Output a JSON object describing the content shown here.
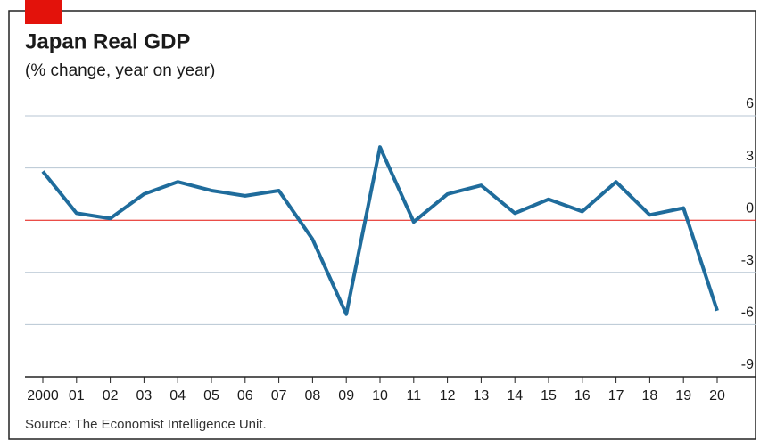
{
  "chart_data": {
    "type": "line",
    "title": "Japan Real GDP",
    "subtitle": "(% change, year on year)",
    "source": "Source: The Economist Intelligence Unit.",
    "categories": [
      "2000",
      "01",
      "02",
      "03",
      "04",
      "05",
      "06",
      "07",
      "08",
      "09",
      "10",
      "11",
      "12",
      "13",
      "14",
      "15",
      "16",
      "17",
      "18",
      "19",
      "20"
    ],
    "series": [
      {
        "name": "Japan Real GDP",
        "color": "#1f6c9c",
        "values": [
          2.8,
          0.4,
          0.1,
          1.5,
          2.2,
          1.7,
          1.4,
          1.7,
          -1.1,
          -5.4,
          4.2,
          -0.1,
          1.5,
          2.0,
          0.4,
          1.2,
          0.5,
          2.2,
          0.3,
          0.7,
          -5.2
        ]
      }
    ],
    "ylim": [
      -9,
      6
    ],
    "yticks": [
      6,
      3,
      0,
      -3,
      -6,
      -9
    ],
    "grid": true,
    "grid_color": "#b7c6d3",
    "zero_line_color": "#e3120b",
    "accent_color": "#e3120b"
  }
}
